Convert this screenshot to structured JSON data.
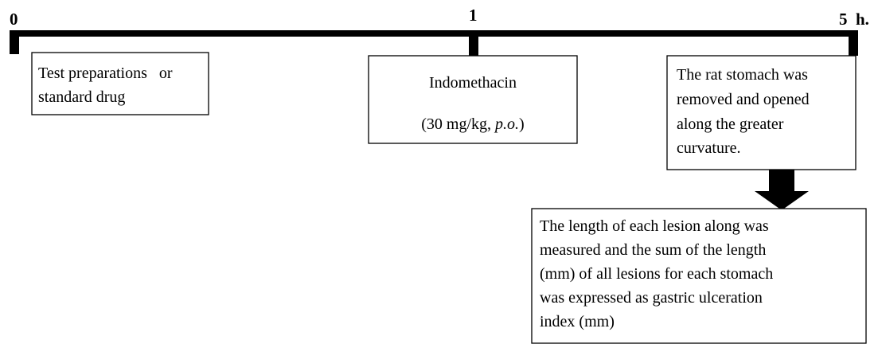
{
  "timeline": {
    "labels": [
      "0",
      "1",
      "5  h."
    ]
  },
  "boxes": [
    {
      "lines": [
        "Test preparations   or",
        "standard drug"
      ]
    },
    {
      "lines": [
        "Indomethacin"
      ],
      "dose": {
        "text": "(30 mg/kg, ",
        "route": "p.o.",
        "close": ")"
      }
    },
    {
      "lines": [
        "The rat stomach was",
        "removed and opened",
        "along the greater",
        "curvature."
      ]
    },
    {
      "lines": [
        "The length of each lesion along was",
        "measured and the sum of the length",
        "(mm) of all lesions for each stomach",
        "was expressed as gastric ulceration",
        "index (mm)"
      ]
    }
  ]
}
